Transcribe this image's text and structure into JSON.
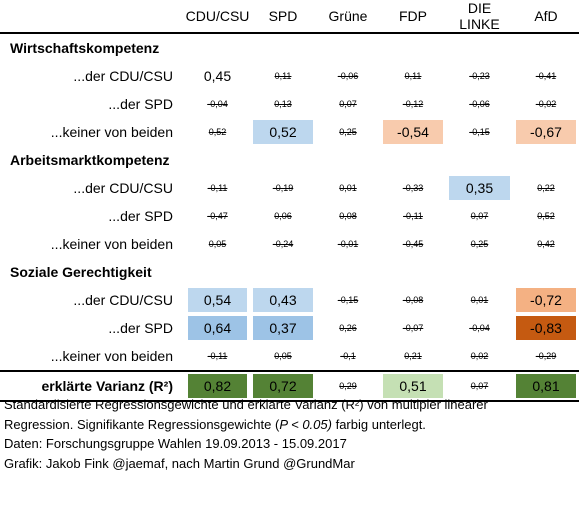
{
  "header": [
    "CDU/CSU",
    "SPD",
    "Grüne",
    "FDP",
    "DIE LINKE",
    "AfD"
  ],
  "sections": [
    {
      "title": "Wirtschaftskompetenz",
      "rows": [
        {
          "label": "...der CDU/CSU",
          "cells": [
            {
              "v": "0,45",
              "s": true,
              "bg": null
            },
            {
              "v": "0,11",
              "s": false
            },
            {
              "v": "-0,06",
              "s": false
            },
            {
              "v": "0,11",
              "s": false
            },
            {
              "v": "-0,23",
              "s": false
            },
            {
              "v": "-0,41",
              "s": false
            }
          ]
        },
        {
          "label": "...der SPD",
          "cells": [
            {
              "v": "-0,04",
              "s": false
            },
            {
              "v": "0,13",
              "s": false
            },
            {
              "v": "0,07",
              "s": false
            },
            {
              "v": "-0,12",
              "s": false
            },
            {
              "v": "-0,06",
              "s": false
            },
            {
              "v": "-0,02",
              "s": false
            }
          ]
        },
        {
          "label": "...keiner von beiden",
          "cells": [
            {
              "v": "0,52",
              "s": false
            },
            {
              "v": "0,52",
              "s": true,
              "bg": "#bdd7ee"
            },
            {
              "v": "0,25",
              "s": false
            },
            {
              "v": "-0,54",
              "s": true,
              "bg": "#f8cbad"
            },
            {
              "v": "-0,15",
              "s": false
            },
            {
              "v": "-0,67",
              "s": true,
              "bg": "#f8cbad"
            }
          ]
        }
      ]
    },
    {
      "title": "Arbeitsmarktkompetenz",
      "rows": [
        {
          "label": "...der CDU/CSU",
          "cells": [
            {
              "v": "-0,11",
              "s": false
            },
            {
              "v": "-0,19",
              "s": false
            },
            {
              "v": "0,01",
              "s": false
            },
            {
              "v": "-0,33",
              "s": false
            },
            {
              "v": "0,35",
              "s": true,
              "bg": "#bdd7ee"
            },
            {
              "v": "0,22",
              "s": false
            }
          ]
        },
        {
          "label": "...der SPD",
          "cells": [
            {
              "v": "-0,47",
              "s": false
            },
            {
              "v": "0,06",
              "s": false
            },
            {
              "v": "0,08",
              "s": false
            },
            {
              "v": "-0,11",
              "s": false
            },
            {
              "v": "0,07",
              "s": false
            },
            {
              "v": "0,52",
              "s": false
            }
          ]
        },
        {
          "label": "...keiner von beiden",
          "cells": [
            {
              "v": "0,05",
              "s": false
            },
            {
              "v": "-0,24",
              "s": false
            },
            {
              "v": "-0,01",
              "s": false
            },
            {
              "v": "-0,45",
              "s": false
            },
            {
              "v": "0,25",
              "s": false
            },
            {
              "v": "0,42",
              "s": false
            }
          ]
        }
      ]
    },
    {
      "title": "Soziale Gerechtigkeit",
      "rows": [
        {
          "label": "...der CDU/CSU",
          "cells": [
            {
              "v": "0,54",
              "s": true,
              "bg": "#bdd7ee"
            },
            {
              "v": "0,43",
              "s": true,
              "bg": "#bdd7ee"
            },
            {
              "v": "-0,15",
              "s": false
            },
            {
              "v": "-0,08",
              "s": false
            },
            {
              "v": "0,01",
              "s": false
            },
            {
              "v": "-0,72",
              "s": true,
              "bg": "#f4b183"
            }
          ]
        },
        {
          "label": "...der SPD",
          "cells": [
            {
              "v": "0,64",
              "s": true,
              "bg": "#9dc3e6"
            },
            {
              "v": "0,37",
              "s": true,
              "bg": "#9dc3e6"
            },
            {
              "v": "0,26",
              "s": false
            },
            {
              "v": "-0,07",
              "s": false
            },
            {
              "v": "-0,04",
              "s": false
            },
            {
              "v": "-0,83",
              "s": true,
              "bg": "#c55a11"
            }
          ]
        },
        {
          "label": "...keiner von beiden",
          "cells": [
            {
              "v": "-0,11",
              "s": false
            },
            {
              "v": "0,05",
              "s": false
            },
            {
              "v": "-0,1",
              "s": false
            },
            {
              "v": "0,21",
              "s": false
            },
            {
              "v": "0,02",
              "s": false
            },
            {
              "v": "-0,29",
              "s": false
            }
          ]
        }
      ]
    }
  ],
  "total": {
    "label": "erklärte Varianz (R²)",
    "cells": [
      {
        "v": "0,82",
        "s": true,
        "bg": "#548235"
      },
      {
        "v": "0,72",
        "s": true,
        "bg": "#548235"
      },
      {
        "v": "0,29",
        "s": false
      },
      {
        "v": "0,51",
        "s": true,
        "bg": "#c5e0b4"
      },
      {
        "v": "0,07",
        "s": false
      },
      {
        "v": "0,81",
        "s": true,
        "bg": "#548235"
      }
    ]
  },
  "caption": {
    "line1": "Standardisierte Regressionsgewichte und erklärte Varianz (R²) von multipler linearer",
    "line2_pre": "Regression. Signifikante Regressionsgewichte (",
    "line2_p": "P",
    "line2_mid": " < 0.05)",
    "line2_post": " farbig unterlegt.",
    "line3": "Daten: Forschungsgruppe Wahlen 19.09.2013 - 15.09.2017",
    "line4": "Grafik: Jakob Fink @jaemaf, nach Martin Grund @GrundMar"
  }
}
